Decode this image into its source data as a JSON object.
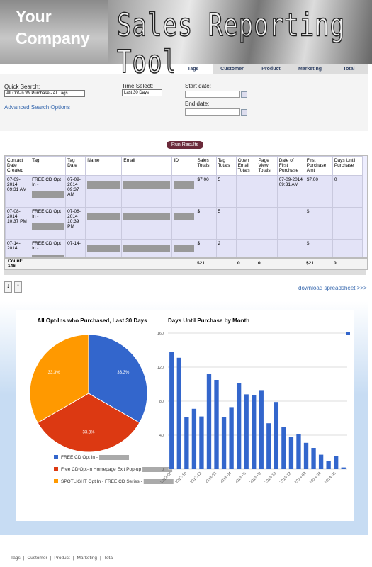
{
  "header": {
    "company": "Your Company",
    "tool": "Sales Reporting Tool"
  },
  "tabs": [
    "Tags",
    "Customer",
    "Product",
    "Marketing",
    "Total"
  ],
  "search": {
    "quick_label": "Quick Search:",
    "quick_value": "All Opt-in W/ Purchase - All Tags",
    "advanced": "Advanced Search Options",
    "time_label": "Time Select:",
    "time_value": "Last 30 Days",
    "start_label": "Start date:",
    "end_label": "End date:",
    "run": "Run Results"
  },
  "table": {
    "columns": [
      "Contact Date Created",
      "Tag",
      "Tag Date",
      "Name",
      "Email",
      "ID",
      "Sales Totals",
      "Tag Totals",
      "Open Email Totals",
      "Page View Totals",
      "Date of First Purchase",
      "First Purchase Amt",
      "Days Until Purchase"
    ],
    "rows": [
      [
        "07-09-2014 09:31 AM",
        "FREE CD Opt In -",
        "07-09-2014 09:37 AM",
        null,
        null,
        null,
        "$7.00",
        5,
        null,
        null,
        "07-09-2014 09:31 AM",
        "$7.00",
        0
      ],
      [
        "07-08-2014 10:37 PM",
        "FREE CD Opt In -",
        "07-08-2014 10:39 PM",
        null,
        null,
        null,
        "$",
        5,
        null,
        null,
        null,
        "$",
        null
      ],
      [
        "07-14-2014",
        "FREE CD Opt In -",
        "07-14-",
        null,
        null,
        null,
        "$",
        2,
        null,
        null,
        null,
        "$",
        null
      ]
    ],
    "count_label": "Count:",
    "count": 146,
    "count_cells": [
      null,
      null,
      null,
      null,
      null,
      null,
      "$21",
      null,
      0,
      0,
      null,
      "$21",
      0
    ]
  },
  "download": "download spreadsheet >>>",
  "chart_data": [
    {
      "type": "pie",
      "title": "All Opt-Ins who Purchased, Last 30 Days",
      "categories": [
        "FREE CD Opt In -",
        "Free CD Opt-in Homepage Exit Pop-up",
        "SPOTLIGHT Opt In - FREE CD Series -"
      ],
      "values": [
        33.3,
        33.3,
        33.3
      ],
      "value_labels": [
        "33.3%",
        "33.3%",
        "33.3%"
      ],
      "colors": [
        "#3366cc",
        "#dc3912",
        "#ff9900"
      ]
    },
    {
      "type": "bar",
      "title": "Days Until Purchase by Month",
      "categories": [
        "2012-08",
        null,
        "2012-10",
        null,
        "2012-12",
        null,
        "2013-02",
        null,
        "2013-04",
        null,
        "2013-06",
        null,
        "2013-08",
        null,
        "2013-10",
        null,
        "2013-12",
        null,
        "2014-02",
        null,
        "2014-04",
        null,
        "2014-06",
        null
      ],
      "values": [
        138,
        131,
        61,
        71,
        62,
        112,
        105,
        61,
        73,
        101,
        88,
        87,
        93,
        54,
        79,
        50,
        38,
        41,
        31,
        25,
        17,
        10,
        15,
        2
      ],
      "color": "#3366cc",
      "ylim": [
        0,
        160
      ],
      "yticks": [
        0,
        40,
        80,
        120,
        160
      ],
      "grid": true
    }
  ],
  "footer": [
    "Tags",
    "Customer",
    "Product",
    "Marketing",
    "Total"
  ]
}
